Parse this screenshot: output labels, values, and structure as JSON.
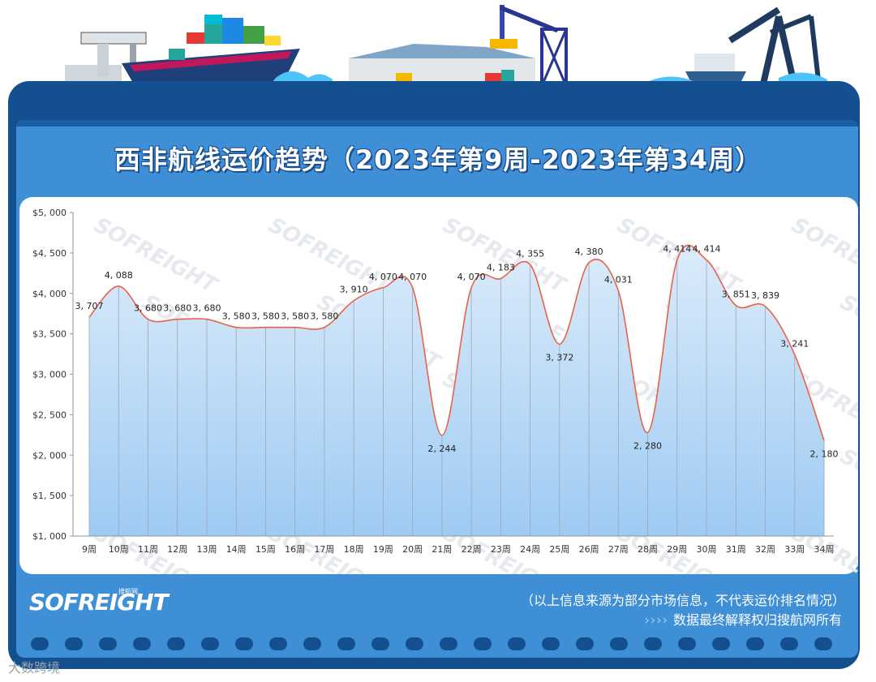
{
  "title": "西非航线运价趋势（2023年第9周-2023年第34周）",
  "logo": {
    "text": "SOFREIGHT",
    "sub": "搜航网"
  },
  "notes": {
    "line1": "（以上信息来源为部分市场信息，不代表运价排名情况）",
    "arrows": "››››",
    "line2": "数据最终解释权归搜航网所有"
  },
  "watermark": "SOFREIGHT",
  "footer": "大数跨境",
  "colors": {
    "line": "#e8624a",
    "area_top": "#dcebfa",
    "area_bottom": "#9ecbf3",
    "frame": "#14508f",
    "panel_bg": "#3f8fd6"
  },
  "chart_data": {
    "type": "area",
    "title": "西非航线运价趋势（2023年第9周-2023年第34周）",
    "categories": [
      "9周",
      "10周",
      "11周",
      "12周",
      "13周",
      "14周",
      "15周",
      "16周",
      "17周",
      "18周",
      "19周",
      "20周",
      "21周",
      "22周",
      "23周",
      "24周",
      "25周",
      "26周",
      "27周",
      "28周",
      "29周",
      "30周",
      "31周",
      "32周",
      "33周",
      "34周"
    ],
    "values": [
      3707,
      4088,
      3680,
      3680,
      3680,
      3580,
      3580,
      3580,
      3580,
      3910,
      4070,
      4070,
      2244,
      4070,
      4183,
      4355,
      3372,
      4380,
      4031,
      2280,
      4414,
      4414,
      3851,
      3839,
      3241,
      2180
    ],
    "value_labels": [
      "3, 707",
      "4, 088",
      "3, 680",
      "3, 680",
      "3, 680",
      "3, 580",
      "3, 580",
      "3, 580",
      "3, 580",
      "3, 910",
      "4, 070",
      "4, 070",
      "2, 244",
      "4, 070",
      "4, 183",
      "4, 355",
      "3, 372",
      "4, 380",
      "4, 031",
      "2, 280",
      "4, 414",
      "4, 414",
      "3, 851",
      "3, 839",
      "3, 241",
      "2, 180"
    ],
    "ylim": [
      1000,
      5000
    ],
    "y_ticks": [
      1000,
      1500,
      2000,
      2500,
      3000,
      3500,
      4000,
      4500,
      5000
    ],
    "y_tick_labels": [
      "$1, 000",
      "$1, 500",
      "$2, 000",
      "$2, 500",
      "$3, 000",
      "$3, 500",
      "$4, 000",
      "$4, 500",
      "$5, 000"
    ],
    "grid": "vertical-lines",
    "legend": "none"
  }
}
